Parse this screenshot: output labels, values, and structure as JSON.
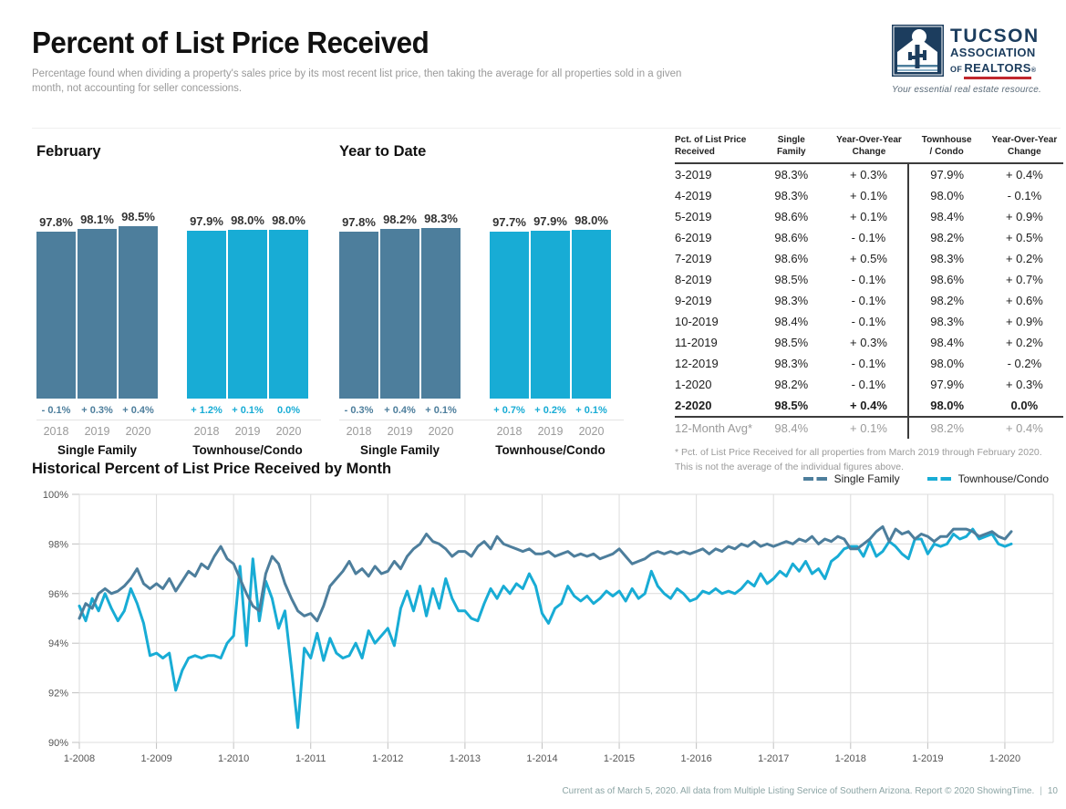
{
  "page": {
    "title": "Percent of List Price Received",
    "subtitle": "Percentage found when dividing a property's sales price by its most recent list price, then taking the average for all properties sold in a given month, not accounting for seller concessions.",
    "footer_text": "Current as of March 5, 2020. All data from Multiple Listing Service of Southern Arizona. Report © 2020 ShowingTime.",
    "page_number": "10"
  },
  "logo": {
    "line1": "TUCSON",
    "line2": "ASSOCIATION",
    "line3_of": "OF",
    "line3": "REALTORS",
    "registered": "®",
    "tagline": "Your essential real estate resource."
  },
  "colors": {
    "single_family": "#4d7e9c",
    "townhouse_condo": "#18acd5",
    "accent_red": "#c0272d",
    "logo_navy": "#1c3d5e",
    "grid": "#dcdcdc",
    "tick": "#c0c0c0",
    "axis_text": "#555555",
    "muted_text": "#9a9a9a",
    "footer_text": "#8ba4a4"
  },
  "table": {
    "headers": [
      {
        "l1": "Pct. of List Price",
        "l2": "Received"
      },
      {
        "l1": "Single",
        "l2": "Family"
      },
      {
        "l1": "Year-Over-Year",
        "l2": "Change"
      },
      {
        "l1": "Townhouse",
        "l2": "/ Condo"
      },
      {
        "l1": "Year-Over-Year",
        "l2": "Change"
      }
    ],
    "rows": [
      {
        "month": "3-2019",
        "sf": "98.3%",
        "sf_change": "+ 0.3%",
        "tc": "97.9%",
        "tc_change": "+ 0.4%",
        "style": "normal"
      },
      {
        "month": "4-2019",
        "sf": "98.3%",
        "sf_change": "+ 0.1%",
        "tc": "98.0%",
        "tc_change": "- 0.1%",
        "style": "normal"
      },
      {
        "month": "5-2019",
        "sf": "98.6%",
        "sf_change": "+ 0.1%",
        "tc": "98.4%",
        "tc_change": "+ 0.9%",
        "style": "normal"
      },
      {
        "month": "6-2019",
        "sf": "98.6%",
        "sf_change": "- 0.1%",
        "tc": "98.2%",
        "tc_change": "+ 0.5%",
        "style": "normal"
      },
      {
        "month": "7-2019",
        "sf": "98.6%",
        "sf_change": "+ 0.5%",
        "tc": "98.3%",
        "tc_change": "+ 0.2%",
        "style": "normal"
      },
      {
        "month": "8-2019",
        "sf": "98.5%",
        "sf_change": "- 0.1%",
        "tc": "98.6%",
        "tc_change": "+ 0.7%",
        "style": "normal"
      },
      {
        "month": "9-2019",
        "sf": "98.3%",
        "sf_change": "- 0.1%",
        "tc": "98.2%",
        "tc_change": "+ 0.6%",
        "style": "normal"
      },
      {
        "month": "10-2019",
        "sf": "98.4%",
        "sf_change": "- 0.1%",
        "tc": "98.3%",
        "tc_change": "+ 0.9%",
        "style": "normal"
      },
      {
        "month": "11-2019",
        "sf": "98.5%",
        "sf_change": "+ 0.3%",
        "tc": "98.4%",
        "tc_change": "+ 0.2%",
        "style": "normal"
      },
      {
        "month": "12-2019",
        "sf": "98.3%",
        "sf_change": "- 0.1%",
        "tc": "98.0%",
        "tc_change": "- 0.2%",
        "style": "normal"
      },
      {
        "month": "1-2020",
        "sf": "98.2%",
        "sf_change": "- 0.1%",
        "tc": "97.9%",
        "tc_change": "+ 0.3%",
        "style": "normal"
      },
      {
        "month": "2-2020",
        "sf": "98.5%",
        "sf_change": "+ 0.4%",
        "tc": "98.0%",
        "tc_change": "0.0%",
        "style": "bold"
      },
      {
        "month": "12-Month Avg*",
        "sf": "98.4%",
        "sf_change": "+ 0.1%",
        "tc": "98.2%",
        "tc_change": "+ 0.4%",
        "style": "avg"
      }
    ],
    "footnote": "* Pct. of List Price Received for all properties from March 2019 through February 2020. This is not the average of the individual figures above."
  },
  "chart_data": [
    {
      "type": "grouped_bar",
      "title": "February",
      "value_format": "percent",
      "groups": [
        {
          "name": "Single Family",
          "color": "#4d7e9c",
          "years": [
            "2018",
            "2019",
            "2020"
          ],
          "values": [
            97.8,
            98.1,
            98.5
          ],
          "changes": [
            "- 0.1%",
            "+ 0.3%",
            "+ 0.4%"
          ]
        },
        {
          "name": "Townhouse/Condo",
          "color": "#18acd5",
          "years": [
            "2018",
            "2019",
            "2020"
          ],
          "values": [
            97.9,
            98.0,
            98.0
          ],
          "changes": [
            "+ 1.2%",
            "+ 0.1%",
            "0.0%"
          ]
        }
      ]
    },
    {
      "type": "grouped_bar",
      "title": "Year to Date",
      "value_format": "percent",
      "groups": [
        {
          "name": "Single Family",
          "color": "#4d7e9c",
          "years": [
            "2018",
            "2019",
            "2020"
          ],
          "values": [
            97.8,
            98.2,
            98.3
          ],
          "changes": [
            "- 0.3%",
            "+ 0.4%",
            "+ 0.1%"
          ]
        },
        {
          "name": "Townhouse/Condo",
          "color": "#18acd5",
          "years": [
            "2018",
            "2019",
            "2020"
          ],
          "values": [
            97.7,
            97.9,
            98.0
          ],
          "changes": [
            "+ 0.7%",
            "+ 0.2%",
            "+ 0.1%"
          ]
        }
      ]
    },
    {
      "type": "line",
      "title": "Historical Percent of List Price Received by Month",
      "x_unit": "month",
      "x_start": "1-2008",
      "x_end": "2-2020",
      "x_tick_labels": [
        "1-2008",
        "1-2009",
        "1-2010",
        "1-2011",
        "1-2012",
        "1-2013",
        "1-2014",
        "1-2015",
        "1-2016",
        "1-2017",
        "1-2018",
        "1-2019",
        "1-2020"
      ],
      "ylim": [
        90,
        100
      ],
      "y_ticks": [
        100,
        98,
        96,
        94,
        92,
        90
      ],
      "y_tick_labels": [
        "100%",
        "98%",
        "96%",
        "94%",
        "92%",
        "90%"
      ],
      "grid": true,
      "legend_position": "top-right",
      "series": [
        {
          "name": "Single Family",
          "color": "#4d7e9c",
          "values": [
            95.0,
            95.6,
            95.4,
            96.0,
            96.2,
            96.0,
            96.1,
            96.3,
            96.6,
            97.0,
            96.4,
            96.2,
            96.4,
            96.2,
            96.6,
            96.1,
            96.5,
            96.9,
            96.7,
            97.2,
            97.0,
            97.5,
            97.9,
            97.4,
            97.2,
            96.6,
            96.0,
            95.5,
            95.3,
            96.8,
            97.5,
            97.2,
            96.4,
            95.8,
            95.3,
            95.1,
            95.2,
            94.9,
            95.5,
            96.3,
            96.6,
            96.9,
            97.3,
            96.8,
            97.0,
            96.7,
            97.1,
            96.8,
            96.9,
            97.3,
            97.0,
            97.5,
            97.8,
            98.0,
            98.4,
            98.1,
            98.0,
            97.8,
            97.5,
            97.7,
            97.7,
            97.5,
            97.9,
            98.1,
            97.8,
            98.3,
            98.0,
            97.9,
            97.8,
            97.7,
            97.8,
            97.6,
            97.6,
            97.7,
            97.5,
            97.6,
            97.7,
            97.5,
            97.6,
            97.5,
            97.6,
            97.4,
            97.5,
            97.6,
            97.8,
            97.5,
            97.2,
            97.3,
            97.4,
            97.6,
            97.7,
            97.6,
            97.7,
            97.6,
            97.7,
            97.6,
            97.7,
            97.8,
            97.6,
            97.8,
            97.7,
            97.9,
            97.8,
            98.0,
            97.9,
            98.1,
            97.9,
            98.0,
            97.9,
            98.0,
            98.1,
            98.0,
            98.2,
            98.1,
            98.3,
            98.0,
            98.2,
            98.1,
            98.3,
            98.2,
            97.8,
            97.8,
            98.0,
            98.2,
            98.5,
            98.7,
            98.1,
            98.6,
            98.4,
            98.5,
            98.2,
            98.4,
            98.3,
            98.1,
            98.3,
            98.3,
            98.6,
            98.6,
            98.6,
            98.5,
            98.3,
            98.4,
            98.5,
            98.3,
            98.2,
            98.5
          ]
        },
        {
          "name": "Townhouse/Condo",
          "color": "#18acd5",
          "values": [
            95.5,
            94.9,
            95.8,
            95.3,
            96.0,
            95.4,
            94.9,
            95.3,
            96.2,
            95.6,
            94.8,
            93.5,
            93.6,
            93.4,
            93.6,
            92.1,
            92.9,
            93.4,
            93.5,
            93.4,
            93.5,
            93.5,
            93.4,
            94.0,
            94.3,
            97.1,
            93.9,
            97.4,
            94.9,
            96.5,
            95.8,
            94.6,
            95.3,
            93.0,
            90.6,
            93.8,
            93.4,
            94.4,
            93.3,
            94.2,
            93.6,
            93.4,
            93.5,
            94.0,
            93.4,
            94.5,
            94.0,
            94.3,
            94.6,
            93.9,
            95.4,
            96.1,
            95.3,
            96.3,
            95.1,
            96.2,
            95.4,
            96.6,
            95.8,
            95.3,
            95.3,
            95.0,
            94.9,
            95.6,
            96.2,
            95.8,
            96.3,
            96.0,
            96.4,
            96.2,
            96.8,
            96.3,
            95.2,
            94.8,
            95.4,
            95.6,
            96.3,
            95.9,
            95.7,
            95.9,
            95.6,
            95.8,
            96.1,
            95.9,
            96.1,
            95.7,
            96.2,
            95.8,
            96.0,
            96.9,
            96.3,
            96.0,
            95.8,
            96.2,
            96.0,
            95.7,
            95.8,
            96.1,
            96.0,
            96.2,
            96.0,
            96.1,
            96.0,
            96.2,
            96.5,
            96.3,
            96.8,
            96.4,
            96.6,
            96.9,
            96.7,
            97.2,
            96.9,
            97.3,
            96.8,
            97.0,
            96.6,
            97.3,
            97.5,
            97.8,
            97.9,
            97.9,
            97.5,
            98.1,
            97.5,
            97.7,
            98.1,
            97.9,
            97.6,
            97.4,
            98.2,
            98.2,
            97.6,
            98.0,
            97.9,
            98.0,
            98.4,
            98.2,
            98.3,
            98.6,
            98.2,
            98.3,
            98.4,
            98.0,
            97.9,
            98.0
          ]
        }
      ]
    }
  ]
}
